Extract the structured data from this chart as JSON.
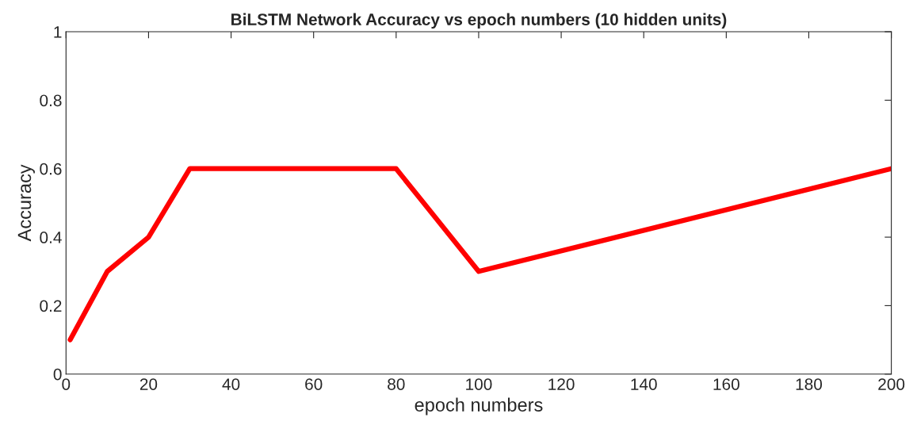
{
  "chart_data": {
    "type": "line",
    "title": "BiLSTM Network Accuracy vs epoch numbers (10 hidden units)",
    "xlabel": "epoch numbers",
    "ylabel": "Accuracy",
    "x": [
      1,
      10,
      20,
      30,
      80,
      100,
      200
    ],
    "series": [
      {
        "color": "#ff0000",
        "values": [
          0.1,
          0.3,
          0.4,
          0.6,
          0.6,
          0.3,
          0.6
        ]
      }
    ],
    "xlim": [
      0,
      200
    ],
    "xticks": [
      0,
      20,
      40,
      60,
      80,
      100,
      120,
      140,
      160,
      180,
      200
    ],
    "ylim": [
      0,
      1
    ],
    "yticks": [
      0,
      0.2,
      0.4,
      0.6,
      0.8,
      1
    ],
    "grid": false,
    "line_style": "solid"
  }
}
